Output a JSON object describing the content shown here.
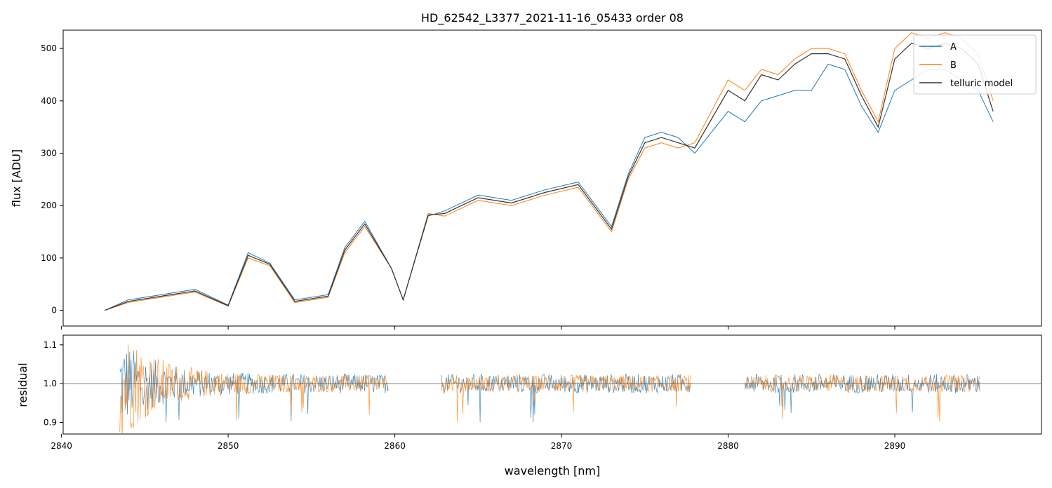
{
  "title": "HD_62542_L3377_2021-11-16_05433  order 08",
  "colors": {
    "A": "#1f77b4",
    "B": "#ff7f0e",
    "model": "#333333"
  },
  "chart_data": [
    {
      "type": "line",
      "panel": "flux",
      "ylabel": "flux [ADU]",
      "xlim": [
        2840.1,
        2898.8
      ],
      "ylim": [
        -30,
        535
      ],
      "yticks": [
        0,
        100,
        200,
        300,
        400,
        500
      ],
      "ytick_labels": [
        "0",
        "100",
        "200",
        "300",
        "400",
        "500"
      ],
      "legend": {
        "placement": "top-right",
        "entries": [
          "A",
          "B",
          "telluric model"
        ]
      },
      "series": [
        {
          "name": "A",
          "x": [
            2842.6,
            2844,
            2846,
            2848,
            2850,
            2851.2,
            2852.5,
            2854,
            2856,
            2857,
            2858.2,
            2859.8,
            2860.5,
            2862,
            2863,
            2865,
            2867,
            2869,
            2871,
            2873,
            2874,
            2875,
            2876,
            2877,
            2878,
            2880,
            2881,
            2882,
            2883,
            2884,
            2885,
            2886,
            2887,
            2888,
            2889,
            2890,
            2891,
            2892,
            2893,
            2894,
            2895,
            2895.9
          ],
          "y": [
            0,
            20,
            30,
            40,
            10,
            110,
            90,
            20,
            30,
            120,
            170,
            80,
            20,
            180,
            190,
            220,
            210,
            230,
            245,
            160,
            260,
            330,
            340,
            330,
            300,
            380,
            360,
            400,
            410,
            420,
            420,
            470,
            460,
            390,
            340,
            420,
            440,
            460,
            460,
            440,
            420,
            360
          ]
        },
        {
          "name": "B",
          "x": [
            2842.6,
            2844,
            2846,
            2848,
            2850,
            2851.2,
            2852.5,
            2854,
            2856,
            2857,
            2858.2,
            2859.8,
            2860.5,
            2862,
            2863,
            2865,
            2867,
            2869,
            2871,
            2873,
            2874,
            2875,
            2876,
            2877,
            2878,
            2880,
            2881,
            2882,
            2883,
            2884,
            2885,
            2886,
            2887,
            2888,
            2889,
            2890,
            2891,
            2892,
            2893,
            2894,
            2895,
            2895.9
          ],
          "y": [
            0,
            15,
            25,
            35,
            8,
            100,
            85,
            15,
            25,
            110,
            160,
            80,
            20,
            185,
            180,
            210,
            200,
            220,
            235,
            150,
            250,
            310,
            320,
            310,
            320,
            440,
            420,
            460,
            450,
            480,
            500,
            500,
            490,
            420,
            360,
            500,
            530,
            520,
            530,
            520,
            490,
            400
          ]
        },
        {
          "name": "telluric model",
          "x": [
            2842.6,
            2844,
            2846,
            2848,
            2850,
            2851.2,
            2852.5,
            2854,
            2856,
            2857,
            2858.2,
            2859.8,
            2860.5,
            2862,
            2863,
            2865,
            2867,
            2869,
            2871,
            2873,
            2874,
            2875,
            2876,
            2877,
            2878,
            2880,
            2881,
            2882,
            2883,
            2884,
            2885,
            2886,
            2887,
            2888,
            2889,
            2890,
            2891,
            2892,
            2893,
            2894,
            2895,
            2895.9
          ],
          "y": [
            0,
            17,
            27,
            37,
            9,
            105,
            88,
            17,
            27,
            115,
            165,
            80,
            20,
            182,
            185,
            215,
            205,
            225,
            240,
            155,
            255,
            320,
            330,
            320,
            310,
            420,
            400,
            450,
            440,
            470,
            490,
            490,
            480,
            410,
            350,
            480,
            510,
            500,
            510,
            500,
            470,
            380
          ]
        }
      ]
    },
    {
      "type": "line",
      "panel": "residual",
      "xlabel": "wavelength [nm]",
      "ylabel": "residual",
      "xlim": [
        2840.1,
        2898.8
      ],
      "ylim": [
        0.87,
        1.125
      ],
      "xticks": [
        2840,
        2850,
        2860,
        2870,
        2880,
        2890
      ],
      "xtick_labels": [
        "2840",
        "2850",
        "2860",
        "2870",
        "2880",
        "2890"
      ],
      "yticks": [
        0.9,
        1.0,
        1.1
      ],
      "ytick_labels": [
        "0.9",
        "1.0",
        "1.1"
      ],
      "reference_line": 1.0,
      "segments": [
        [
          2843.5,
          2859.6
        ],
        [
          2862.8,
          2877.8
        ],
        [
          2881.0,
          2895.1
        ]
      ],
      "series": [
        {
          "name": "A",
          "noise_near_start": 0.12,
          "noise_typical": 0.025
        },
        {
          "name": "B",
          "noise_near_start": 0.16,
          "noise_typical": 0.022
        }
      ]
    }
  ]
}
